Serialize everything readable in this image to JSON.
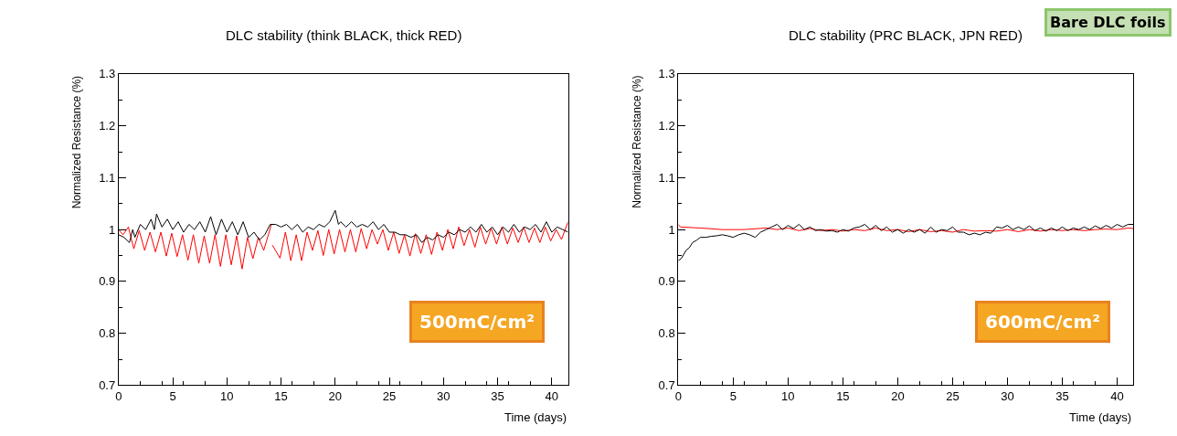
{
  "chart_data": [
    {
      "type": "line",
      "title": "DLC stability (think BLACK, thick RED)",
      "xlabel": "Time (days)",
      "ylabel": "Normalized Resistance (%)",
      "xlim": [
        0,
        41.5
      ],
      "ylim": [
        0.7,
        1.3
      ],
      "xticks": [
        0,
        5,
        10,
        15,
        20,
        25,
        30,
        35,
        40
      ],
      "yticks": [
        0.7,
        0.8,
        0.9,
        1,
        1.1,
        1.2,
        1.3
      ],
      "series": [
        {
          "color": "#ff0000",
          "x": [
            0,
            0.4,
            0.9,
            1.4,
            1.9,
            2.4,
            2.9,
            3.4,
            3.9,
            4.4,
            4.9,
            5.4,
            5.9,
            6.4,
            6.9,
            7.4,
            7.9,
            8.4,
            8.9,
            9.4,
            9.9,
            10.4,
            10.9,
            11.4,
            11.9,
            12.4,
            12.9,
            13.4,
            13.9,
            14.1,
            14.15,
            14.2,
            14.9,
            15.4,
            15.9,
            16.4,
            16.9,
            17.4,
            17.9,
            18.4,
            18.9,
            19.4,
            19.9,
            20.4,
            20.9,
            21.4,
            21.9,
            22.4,
            22.9,
            23.4,
            23.9,
            24.4,
            24.9,
            25.4,
            25.9,
            26.4,
            26.9,
            27.4,
            27.9,
            28.4,
            28.9,
            29.4,
            29.9,
            30.4,
            30.9,
            31.4,
            31.9,
            32.4,
            32.9,
            33.4,
            33.9,
            34.4,
            34.9,
            35.4,
            35.9,
            36.4,
            36.9,
            37.4,
            37.9,
            38.4,
            38.9,
            39.4,
            39.9,
            40.4,
            40.9,
            41.5
          ],
          "values": [
            1.0,
            0.99,
            1.005,
            0.963,
            0.998,
            0.96,
            0.995,
            0.957,
            0.995,
            0.949,
            0.993,
            0.948,
            0.99,
            0.941,
            0.99,
            0.935,
            0.988,
            0.935,
            0.99,
            0.929,
            0.99,
            0.932,
            0.988,
            0.924,
            0.985,
            0.944,
            0.985,
            0.96,
            0.995,
            1.01,
            null,
            0.97,
            0.945,
            0.995,
            0.94,
            0.99,
            0.94,
            0.995,
            0.96,
            0.998,
            0.95,
            1.0,
            0.953,
            1.0,
            0.957,
            1.0,
            0.957,
            1.002,
            0.963,
            1.0,
            0.972,
            1.0,
            0.96,
            0.995,
            0.954,
            0.99,
            0.949,
            0.992,
            0.954,
            0.99,
            0.952,
            0.995,
            0.96,
            1.0,
            0.963,
            1.005,
            0.969,
            1.0,
            0.966,
            1.005,
            0.972,
            1.003,
            0.972,
            1.005,
            0.972,
            1.003,
            0.975,
            1.005,
            0.975,
            1.003,
            0.975,
            1.005,
            0.978,
            1.0,
            0.981,
            1.015
          ]
        },
        {
          "color": "#000000",
          "x": [
            0,
            0.5,
            1,
            1.3,
            1.5,
            2,
            2.5,
            3,
            3.3,
            3.5,
            4,
            4.5,
            5,
            5.5,
            6,
            6.5,
            7,
            7.5,
            8,
            8.5,
            9,
            9.5,
            10,
            10.5,
            11,
            11.5,
            12,
            12.5,
            13,
            13.5,
            14,
            14.5,
            15,
            15.5,
            16,
            16.5,
            17,
            17.5,
            18,
            18.5,
            19,
            19.5,
            20,
            20.3,
            20.5,
            21,
            21.5,
            22,
            22.5,
            23,
            23.5,
            24,
            24.5,
            25,
            25.5,
            26,
            26.5,
            27,
            27.5,
            28,
            28.5,
            29,
            29.5,
            30,
            30.5,
            31,
            31.5,
            32,
            32.5,
            33,
            33.5,
            34,
            34.5,
            35,
            35.5,
            36,
            36.5,
            37,
            37.5,
            38,
            38.5,
            39,
            39.5,
            40,
            40.5,
            41,
            41.5
          ],
          "values": [
            0.99,
            0.985,
            0.975,
            1.0,
            0.985,
            1.01,
            1.0,
            1.02,
            1.0,
            1.03,
            1.005,
            1.02,
            1.0,
            1.015,
            0.995,
            1.01,
            1.0,
            1.015,
            0.995,
            1.025,
            0.99,
            1.02,
            0.995,
            1.015,
            0.99,
            1.015,
            0.985,
            0.995,
            0.98,
            0.99,
            1.01,
            1.01,
            1.005,
            1.01,
            1.0,
            1.01,
            0.995,
            1.005,
            1.0,
            1.01,
            1.005,
            1.015,
            1.037,
            1.01,
            1.015,
            1.005,
            1.015,
            1.005,
            1.01,
            1.005,
            1.015,
            1.0,
            1.01,
            0.995,
            0.995,
            0.99,
            0.99,
            0.985,
            0.99,
            0.975,
            0.985,
            0.98,
            0.99,
            0.985,
            0.995,
            0.99,
            1.0,
            0.995,
            1.005,
            0.995,
            1.01,
            0.995,
            1.005,
            0.99,
            1.005,
            0.995,
            1.01,
            0.995,
            1.005,
            1.0,
            1.01,
            0.995,
            1.015,
            0.995,
            1.005,
            1.0,
            0.995
          ]
        }
      ],
      "annotations": [
        "500mC/cm²"
      ]
    },
    {
      "type": "line",
      "title": "DLC stability (PRC BLACK, JPN RED)",
      "xlabel": "Time (days)",
      "ylabel": "Normalized Resistance (%)",
      "xlim": [
        0,
        41.5
      ],
      "ylim": [
        0.7,
        1.3
      ],
      "xticks": [
        0,
        5,
        10,
        15,
        20,
        25,
        30,
        35,
        40
      ],
      "yticks": [
        0.7,
        0.8,
        0.9,
        1,
        1.1,
        1.2,
        1.3
      ],
      "series": [
        {
          "color": "#ff0000",
          "x": [
            0,
            0.2,
            2,
            4,
            6,
            8,
            9,
            10,
            11,
            12,
            13,
            14,
            15,
            16,
            17,
            18,
            19,
            20,
            21,
            22,
            23,
            24,
            25,
            26,
            27,
            28,
            29,
            30,
            31,
            32,
            33,
            34,
            35,
            36,
            37,
            38,
            39,
            40,
            41,
            41.5
          ],
          "values": [
            1.01,
            1.005,
            1.003,
            1.0,
            1.0,
            1.003,
            1.0,
            1.003,
            0.998,
            1.002,
            0.998,
            1.0,
            0.997,
            1.0,
            0.998,
            1.003,
            0.998,
            1.0,
            0.996,
            1.0,
            0.996,
            0.998,
            0.995,
            1.0,
            0.997,
            0.998,
            0.997,
            1.0,
            0.996,
            1.0,
            0.997,
            1.0,
            0.998,
            1.0,
            0.998,
            1.0,
            1.001,
            1.0,
            1.003,
            1.002
          ]
        },
        {
          "color": "#000000",
          "x": [
            0,
            0.3,
            0.7,
            1,
            1.3,
            1.7,
            2,
            2.5,
            3,
            3.5,
            4,
            4.5,
            5,
            5.5,
            6,
            6.5,
            7,
            7.5,
            8,
            8.5,
            9,
            9.5,
            10,
            10.5,
            11,
            11.5,
            12,
            12.5,
            13,
            13.5,
            14,
            14.5,
            15,
            15.5,
            16,
            16.5,
            17,
            17.5,
            18,
            18.5,
            19,
            19.5,
            20,
            20.5,
            21,
            21.5,
            22,
            22.5,
            23,
            23.5,
            24,
            24.5,
            25,
            25.5,
            26,
            26.5,
            27,
            27.5,
            28,
            28.5,
            29,
            29.5,
            30,
            30.5,
            31,
            31.5,
            32,
            32.5,
            33,
            33.5,
            34,
            34.5,
            35,
            35.5,
            36,
            36.5,
            37,
            37.5,
            38,
            38.5,
            39,
            39.5,
            40,
            40.5,
            41,
            41.5
          ],
          "values": [
            0.94,
            0.945,
            0.96,
            0.965,
            0.975,
            0.98,
            0.985,
            0.985,
            0.987,
            0.988,
            0.99,
            0.988,
            0.985,
            0.99,
            0.993,
            0.99,
            0.985,
            0.995,
            1.0,
            1.005,
            1.01,
            1.0,
            1.008,
            1.002,
            1.01,
            1.0,
            1.005,
            0.998,
            1.0,
            0.997,
            0.998,
            0.995,
            1.0,
            0.997,
            1.003,
            1.005,
            1.01,
            1.0,
            1.008,
            0.998,
            1.005,
            0.995,
            1.0,
            0.993,
            1.0,
            0.995,
            1.0,
            0.993,
            1.005,
            0.995,
            1.0,
            0.998,
            1.005,
            0.995,
            0.995,
            0.99,
            0.993,
            0.99,
            0.995,
            0.993,
            1.005,
            1.003,
            1.008,
            1.0,
            1.005,
            1.0,
            1.007,
            0.998,
            1.003,
            0.997,
            1.003,
            0.998,
            1.005,
            0.998,
            1.003,
            1.0,
            1.005,
            1.0,
            1.007,
            1.002,
            1.008,
            1.003,
            1.01,
            1.005,
            1.01,
            1.01
          ]
        }
      ],
      "annotations": [
        "600mC/cm²",
        "Bare DLC foils"
      ]
    }
  ]
}
